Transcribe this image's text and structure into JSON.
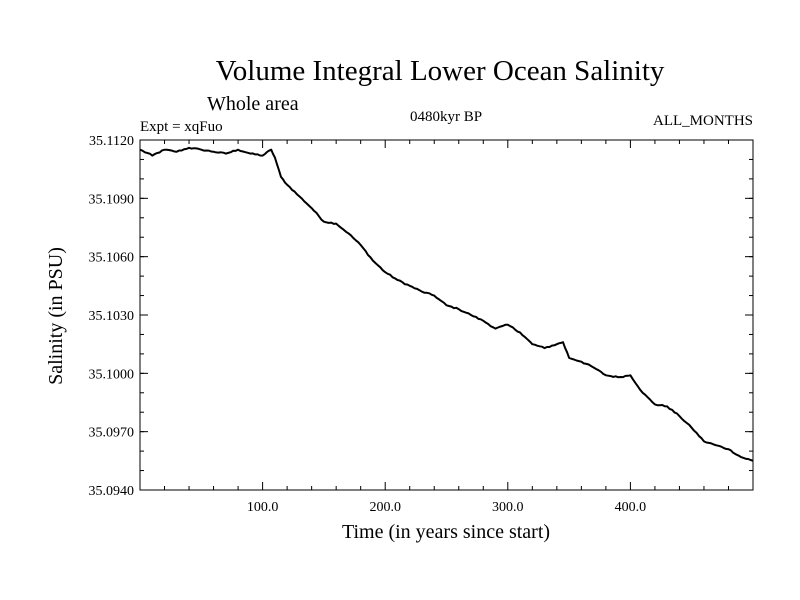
{
  "chart_data": {
    "type": "line",
    "title": "Volume Integral Lower Ocean Salinity",
    "subtitle": "Whole area",
    "experiment": "Expt = xqFuo",
    "period": "0480kyr BP",
    "months": "ALL_MONTHS",
    "xlabel": "Time (in years since start)",
    "ylabel": "Salinity (in PSU)",
    "xlim": [
      0,
      500
    ],
    "ylim": [
      35.094,
      35.112
    ],
    "xticks": [
      100,
      200,
      300,
      400
    ],
    "xtick_labels": [
      "100.0",
      "200.0",
      "300.0",
      "400.0"
    ],
    "yticks": [
      35.094,
      35.097,
      35.1,
      35.103,
      35.106,
      35.109,
      35.112
    ],
    "ytick_labels": [
      "35.0940",
      "35.0970",
      "35.1000",
      "35.1030",
      "35.1060",
      "35.1090",
      "35.1120"
    ],
    "grid": false,
    "series": [
      {
        "name": "salinity",
        "x": [
          0,
          10,
          20,
          30,
          40,
          50,
          60,
          70,
          80,
          90,
          100,
          107,
          110,
          115,
          120,
          130,
          140,
          150,
          160,
          170,
          180,
          190,
          200,
          210,
          220,
          230,
          240,
          250,
          260,
          270,
          280,
          290,
          300,
          310,
          320,
          330,
          340,
          345,
          350,
          360,
          370,
          380,
          390,
          400,
          410,
          420,
          430,
          440,
          450,
          460,
          470,
          480,
          490,
          500
        ],
        "y": [
          35.1115,
          35.1112,
          35.1115,
          35.1114,
          35.1116,
          35.1115,
          35.1114,
          35.1113,
          35.1115,
          35.1113,
          35.1112,
          35.1115,
          35.1111,
          35.1101,
          35.1097,
          35.1091,
          35.1085,
          35.1078,
          35.1077,
          35.1072,
          35.1066,
          35.1058,
          35.1052,
          35.1048,
          35.1045,
          35.1042,
          35.104,
          35.1035,
          35.1033,
          35.103,
          35.1027,
          35.1023,
          35.1025,
          35.1021,
          35.1015,
          35.1013,
          35.1015,
          35.1016,
          35.1008,
          35.1006,
          35.1003,
          35.0999,
          35.0998,
          35.0999,
          35.099,
          35.0984,
          35.0983,
          35.0978,
          35.0972,
          35.0965,
          35.0963,
          35.0961,
          35.0957,
          35.0955
        ]
      }
    ]
  }
}
